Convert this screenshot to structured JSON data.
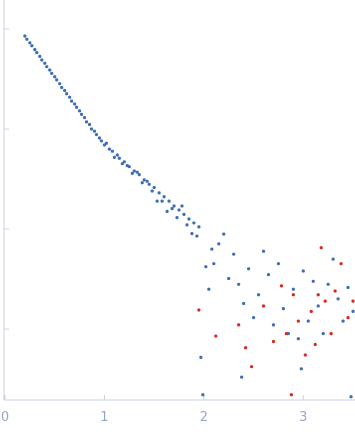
{
  "chart_data": {
    "type": "scatter",
    "xlim": [
      -0.01,
      3.52
    ],
    "xticks": [
      0,
      1,
      2,
      3
    ],
    "ylim": [
      0.000195,
      1.95
    ],
    "yticks": [
      0.001,
      0.01,
      0.1,
      1
    ],
    "y_tick_labels": false,
    "y_scale": "log",
    "grid": false,
    "series": [
      {
        "color": "#3d6db5",
        "x": [
          0.2,
          0.22,
          0.25,
          0.27,
          0.3,
          0.32,
          0.35,
          0.37,
          0.4,
          0.42,
          0.45,
          0.47,
          0.5,
          0.52,
          0.55,
          0.57,
          0.6,
          0.62,
          0.65,
          0.67,
          0.7,
          0.72,
          0.75,
          0.77,
          0.8,
          0.82,
          0.85,
          0.87,
          0.9,
          0.92,
          0.95,
          0.97,
          1.0,
          1.02,
          1.05,
          1.08,
          1.1,
          1.13,
          1.15,
          1.18,
          1.2,
          1.23,
          1.25,
          1.28,
          1.3,
          1.33,
          1.35,
          1.38,
          1.4,
          1.43,
          1.45,
          1.48,
          1.5,
          1.53,
          1.55,
          1.58,
          1.6,
          1.63,
          1.65,
          1.68,
          1.7,
          1.73,
          1.75,
          1.78,
          1.8,
          1.83,
          1.85,
          1.88,
          1.9,
          1.93,
          1.95,
          2.02,
          2.05,
          2.08,
          2.1,
          2.15,
          2.2,
          2.25,
          2.3,
          2.35,
          2.4,
          2.45,
          2.5,
          2.55,
          2.6,
          2.65,
          2.7,
          2.75,
          2.8,
          2.85,
          2.9,
          2.95,
          3.0,
          3.05,
          3.1,
          3.15,
          3.2,
          3.25,
          3.3,
          3.35,
          3.4,
          3.45,
          3.5,
          1.99,
          2.38,
          2.98,
          3.48,
          1.97
        ],
        "values": [
          0.851,
          0.79,
          0.728,
          0.68,
          0.622,
          0.58,
          0.532,
          0.49,
          0.455,
          0.42,
          0.389,
          0.36,
          0.333,
          0.31,
          0.284,
          0.26,
          0.243,
          0.225,
          0.208,
          0.19,
          0.178,
          0.165,
          0.152,
          0.14,
          0.13,
          0.118,
          0.111,
          0.1,
          0.0951,
          0.088,
          0.0813,
          0.076,
          0.0692,
          0.072,
          0.063,
          0.06,
          0.052,
          0.055,
          0.051,
          0.045,
          0.047,
          0.043,
          0.042,
          0.036,
          0.038,
          0.037,
          0.035,
          0.029,
          0.031,
          0.03,
          0.028,
          0.024,
          0.026,
          0.019,
          0.023,
          0.019,
          0.021,
          0.015,
          0.019,
          0.016,
          0.017,
          0.013,
          0.0155,
          0.017,
          0.014,
          0.011,
          0.0126,
          0.009,
          0.0115,
          0.0085,
          0.0105,
          0.0042,
          0.0025,
          0.0063,
          0.0045,
          0.0071,
          0.0089,
          0.0032,
          0.0056,
          0.0028,
          0.0018,
          0.004,
          0.0013,
          0.0022,
          0.006,
          0.0035,
          0.0011,
          0.0045,
          0.0016,
          0.0009,
          0.0025,
          0.0008,
          0.0038,
          0.0012,
          0.003,
          0.0017,
          0.0009,
          0.0028,
          0.005,
          0.002,
          0.0012,
          0.0026,
          0.0015,
          0.00022,
          0.00033,
          0.0004,
          0.00021,
          0.00052
        ]
      },
      {
        "color": "#d8271e",
        "x": [
          1.95,
          2.12,
          2.35,
          2.42,
          2.48,
          2.6,
          2.7,
          2.78,
          2.83,
          2.9,
          2.95,
          3.02,
          3.08,
          3.12,
          3.18,
          3.22,
          3.28,
          3.32,
          3.38,
          3.45,
          3.5,
          2.88,
          3.15
        ],
        "values": [
          0.00155,
          0.00085,
          0.0011,
          0.00065,
          0.00042,
          0.0017,
          0.00075,
          0.0027,
          0.0009,
          0.0022,
          0.0012,
          0.00055,
          0.0015,
          0.0007,
          0.0065,
          0.0019,
          0.0009,
          0.0024,
          0.0045,
          0.0013,
          0.0019,
          0.00022,
          0.0022
        ]
      }
    ]
  }
}
